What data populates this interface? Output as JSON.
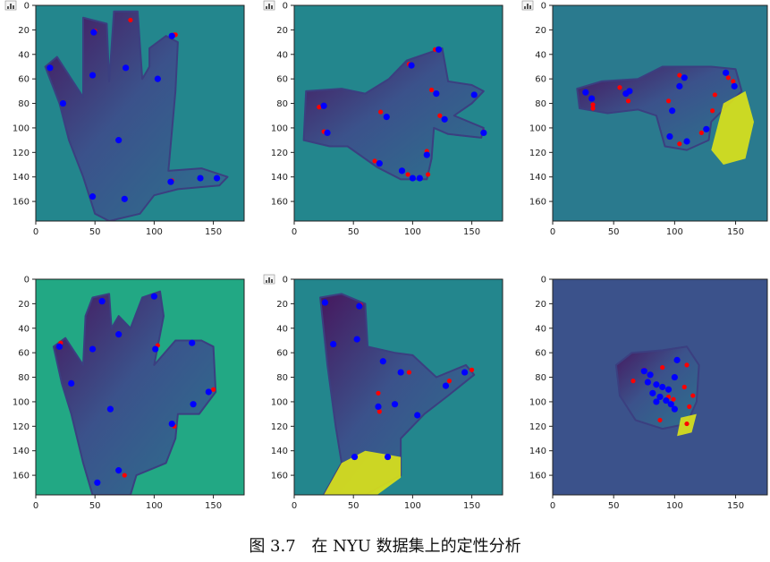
{
  "caption": {
    "figure": "图 3.7",
    "text": "在 NYU 数据集上的定性分析"
  },
  "colors": {
    "background": "#23868d",
    "hand_dark": "#46185e",
    "hand_mid": "#3b528b",
    "hand_light": "#5ec962",
    "hand_bright": "#dde318",
    "prediction": "#0000ff",
    "ground_truth": "#ff0000"
  },
  "chart_data": [
    {
      "type": "scatter",
      "xlim": [
        0,
        176
      ],
      "ylim": [
        176,
        0
      ],
      "xticks": [
        "0",
        "50",
        "100",
        "150"
      ],
      "yticks": [
        "0",
        "20",
        "40",
        "60",
        "80",
        "100",
        "120",
        "140",
        "160"
      ],
      "background": "#23868d",
      "toolbar_icon": "bar-chart-icon",
      "pred": [
        [
          49,
          22
        ],
        [
          76,
          51
        ],
        [
          48,
          57
        ],
        [
          23,
          80
        ],
        [
          12,
          51
        ],
        [
          103,
          60
        ],
        [
          115,
          25
        ],
        [
          70,
          110
        ],
        [
          114,
          144
        ],
        [
          139,
          141
        ],
        [
          153,
          141
        ],
        [
          48,
          156
        ],
        [
          75,
          158
        ]
      ],
      "gt": [
        [
          50,
          21
        ],
        [
          80,
          12
        ],
        [
          117,
          24
        ],
        [
          118,
          24
        ],
        [
          115,
          143
        ]
      ],
      "hand": [
        [
          8,
          50
        ],
        [
          18,
          42
        ],
        [
          30,
          60
        ],
        [
          40,
          75
        ],
        [
          40,
          10
        ],
        [
          60,
          15
        ],
        [
          62,
          62
        ],
        [
          66,
          5
        ],
        [
          86,
          5
        ],
        [
          90,
          60
        ],
        [
          96,
          50
        ],
        [
          96,
          35
        ],
        [
          110,
          25
        ],
        [
          120,
          30
        ],
        [
          118,
          70
        ],
        [
          112,
          135
        ],
        [
          140,
          133
        ],
        [
          162,
          140
        ],
        [
          155,
          147
        ],
        [
          120,
          150
        ],
        [
          100,
          155
        ],
        [
          88,
          170
        ],
        [
          62,
          176
        ],
        [
          50,
          170
        ],
        [
          40,
          140
        ],
        [
          28,
          110
        ],
        [
          20,
          80
        ]
      ]
    },
    {
      "type": "scatter",
      "xlim": [
        0,
        176
      ],
      "ylim": [
        176,
        0
      ],
      "xticks": [
        "0",
        "50",
        "100",
        "150"
      ],
      "yticks": [
        "0",
        "20",
        "40",
        "60",
        "80",
        "100",
        "120",
        "140",
        "160"
      ],
      "background": "#23868d",
      "toolbar_icon": "bar-chart-icon",
      "pred": [
        [
          25,
          82
        ],
        [
          28,
          104
        ],
        [
          99,
          49
        ],
        [
          122,
          36
        ],
        [
          120,
          72
        ],
        [
          78,
          91
        ],
        [
          127,
          93
        ],
        [
          152,
          73
        ],
        [
          160,
          104
        ],
        [
          72,
          129
        ],
        [
          91,
          135
        ],
        [
          112,
          122
        ],
        [
          100,
          141
        ],
        [
          106,
          141
        ]
      ],
      "gt": [
        [
          21,
          83
        ],
        [
          25,
          103
        ],
        [
          97,
          48
        ],
        [
          119,
          36
        ],
        [
          116,
          69
        ],
        [
          73,
          87
        ],
        [
          123,
          90
        ],
        [
          160,
          103
        ],
        [
          68,
          127
        ],
        [
          112,
          119
        ],
        [
          113,
          138
        ],
        [
          96,
          138
        ]
      ],
      "hand": [
        [
          10,
          70
        ],
        [
          40,
          68
        ],
        [
          60,
          72
        ],
        [
          80,
          60
        ],
        [
          95,
          45
        ],
        [
          125,
          35
        ],
        [
          130,
          62
        ],
        [
          150,
          65
        ],
        [
          160,
          70
        ],
        [
          150,
          80
        ],
        [
          135,
          90
        ],
        [
          160,
          100
        ],
        [
          158,
          108
        ],
        [
          130,
          105
        ],
        [
          118,
          100
        ],
        [
          116,
          125
        ],
        [
          112,
          142
        ],
        [
          90,
          142
        ],
        [
          70,
          132
        ],
        [
          45,
          115
        ],
        [
          30,
          115
        ],
        [
          8,
          110
        ]
      ]
    },
    {
      "type": "scatter",
      "xlim": [
        0,
        176
      ],
      "ylim": [
        176,
        0
      ],
      "xticks": [
        "0",
        "50",
        "100",
        "150"
      ],
      "yticks": [
        "0",
        "20",
        "40",
        "60",
        "80",
        "100",
        "120",
        "140",
        "160"
      ],
      "background": "#2a7a8e",
      "toolbar_icon": "bar-chart-icon",
      "pred": [
        [
          27,
          71
        ],
        [
          32,
          76
        ],
        [
          63,
          70
        ],
        [
          60,
          72
        ],
        [
          108,
          59
        ],
        [
          104,
          66
        ],
        [
          98,
          86
        ],
        [
          126,
          101
        ],
        [
          96,
          107
        ],
        [
          110,
          111
        ],
        [
          142,
          55
        ],
        [
          149,
          66
        ]
      ],
      "gt": [
        [
          33,
          81
        ],
        [
          33,
          84
        ],
        [
          55,
          67
        ],
        [
          62,
          78
        ],
        [
          104,
          57
        ],
        [
          95,
          78
        ],
        [
          133,
          73
        ],
        [
          131,
          86
        ],
        [
          104,
          113
        ],
        [
          122,
          104
        ],
        [
          144,
          59
        ],
        [
          148,
          62
        ]
      ],
      "hand": [
        [
          20,
          68
        ],
        [
          40,
          62
        ],
        [
          70,
          60
        ],
        [
          90,
          50
        ],
        [
          130,
          50
        ],
        [
          150,
          52
        ],
        [
          155,
          70
        ],
        [
          130,
          95
        ],
        [
          128,
          110
        ],
        [
          110,
          118
        ],
        [
          92,
          115
        ],
        [
          85,
          90
        ],
        [
          70,
          85
        ],
        [
          45,
          88
        ],
        [
          22,
          84
        ]
      ],
      "bright": [
        [
          140,
          80
        ],
        [
          158,
          70
        ],
        [
          165,
          95
        ],
        [
          158,
          125
        ],
        [
          140,
          130
        ],
        [
          130,
          118
        ]
      ]
    },
    {
      "type": "scatter",
      "xlim": [
        0,
        176
      ],
      "ylim": [
        176,
        0
      ],
      "xticks": [
        "0",
        "50",
        "100",
        "150"
      ],
      "yticks": [
        "0",
        "20",
        "40",
        "60",
        "80",
        "100",
        "120",
        "140",
        "160"
      ],
      "background": "#22a884",
      "toolbar_icon": "",
      "pred": [
        [
          56,
          18
        ],
        [
          70,
          45
        ],
        [
          48,
          57
        ],
        [
          20,
          55
        ],
        [
          30,
          85
        ],
        [
          100,
          14
        ],
        [
          101,
          57
        ],
        [
          132,
          52
        ],
        [
          146,
          92
        ],
        [
          133,
          102
        ],
        [
          63,
          106
        ],
        [
          115,
          118
        ],
        [
          70,
          156
        ],
        [
          52,
          166
        ]
      ],
      "gt": [
        [
          21,
          52
        ],
        [
          103,
          54
        ],
        [
          150,
          90
        ],
        [
          117,
          120
        ],
        [
          75,
          160
        ]
      ],
      "hand": [
        [
          15,
          55
        ],
        [
          25,
          48
        ],
        [
          40,
          70
        ],
        [
          42,
          30
        ],
        [
          48,
          15
        ],
        [
          62,
          12
        ],
        [
          64,
          40
        ],
        [
          70,
          30
        ],
        [
          80,
          40
        ],
        [
          90,
          15
        ],
        [
          105,
          10
        ],
        [
          108,
          30
        ],
        [
          100,
          70
        ],
        [
          118,
          50
        ],
        [
          140,
          50
        ],
        [
          150,
          55
        ],
        [
          152,
          92
        ],
        [
          138,
          110
        ],
        [
          120,
          110
        ],
        [
          118,
          130
        ],
        [
          110,
          150
        ],
        [
          85,
          160
        ],
        [
          80,
          176
        ],
        [
          48,
          176
        ],
        [
          40,
          150
        ],
        [
          30,
          110
        ],
        [
          22,
          85
        ]
      ]
    },
    {
      "type": "scatter",
      "xlim": [
        0,
        176
      ],
      "ylim": [
        176,
        0
      ],
      "xticks": [
        "0",
        "50",
        "100",
        "150"
      ],
      "yticks": [
        "0",
        "20",
        "40",
        "60",
        "80",
        "100",
        "120",
        "140",
        "160"
      ],
      "background": "#23868d",
      "toolbar_icon": "bar-chart-icon",
      "pred": [
        [
          26,
          19
        ],
        [
          55,
          22
        ],
        [
          33,
          53
        ],
        [
          53,
          49
        ],
        [
          75,
          67
        ],
        [
          90,
          76
        ],
        [
          71,
          104
        ],
        [
          85,
          102
        ],
        [
          104,
          111
        ],
        [
          128,
          87
        ],
        [
          144,
          76
        ],
        [
          51,
          145
        ],
        [
          79,
          145
        ]
      ],
      "gt": [
        [
          56,
          21
        ],
        [
          71,
          93
        ],
        [
          97,
          76
        ],
        [
          131,
          83
        ],
        [
          150,
          74
        ],
        [
          72,
          108
        ]
      ],
      "hand": [
        [
          22,
          15
        ],
        [
          40,
          12
        ],
        [
          60,
          20
        ],
        [
          62,
          55
        ],
        [
          85,
          60
        ],
        [
          100,
          62
        ],
        [
          120,
          80
        ],
        [
          145,
          70
        ],
        [
          152,
          78
        ],
        [
          130,
          95
        ],
        [
          110,
          110
        ],
        [
          90,
          130
        ],
        [
          90,
          160
        ],
        [
          60,
          176
        ],
        [
          25,
          176
        ],
        [
          40,
          150
        ],
        [
          35,
          120
        ],
        [
          28,
          70
        ]
      ],
      "bright": [
        [
          40,
          150
        ],
        [
          60,
          140
        ],
        [
          90,
          145
        ],
        [
          90,
          162
        ],
        [
          70,
          176
        ],
        [
          25,
          176
        ]
      ]
    },
    {
      "type": "scatter",
      "xlim": [
        0,
        176
      ],
      "ylim": [
        176,
        0
      ],
      "xticks": [
        "0",
        "50",
        "100",
        "150"
      ],
      "yticks": [
        "0",
        "20",
        "40",
        "60",
        "80",
        "100",
        "120",
        "140",
        "160"
      ],
      "background": "#3b528b",
      "toolbar_icon": "",
      "pred": [
        [
          75,
          75
        ],
        [
          80,
          78
        ],
        [
          78,
          84
        ],
        [
          85,
          86
        ],
        [
          90,
          88
        ],
        [
          82,
          93
        ],
        [
          88,
          96
        ],
        [
          95,
          90
        ],
        [
          100,
          80
        ],
        [
          102,
          66
        ],
        [
          93,
          99
        ],
        [
          97,
          102
        ],
        [
          85,
          100
        ],
        [
          100,
          106
        ]
      ],
      "gt": [
        [
          66,
          83
        ],
        [
          75,
          74
        ],
        [
          90,
          72
        ],
        [
          110,
          70
        ],
        [
          108,
          88
        ],
        [
          95,
          96
        ],
        [
          112,
          104
        ],
        [
          88,
          115
        ],
        [
          110,
          118
        ],
        [
          115,
          95
        ],
        [
          99,
          98
        ]
      ],
      "hand": [
        [
          52,
          70
        ],
        [
          65,
          60
        ],
        [
          90,
          58
        ],
        [
          110,
          55
        ],
        [
          120,
          70
        ],
        [
          118,
          100
        ],
        [
          110,
          118
        ],
        [
          90,
          122
        ],
        [
          68,
          115
        ],
        [
          55,
          95
        ]
      ],
      "bright": [
        [
          105,
          113
        ],
        [
          118,
          110
        ],
        [
          114,
          125
        ],
        [
          102,
          128
        ]
      ]
    }
  ]
}
